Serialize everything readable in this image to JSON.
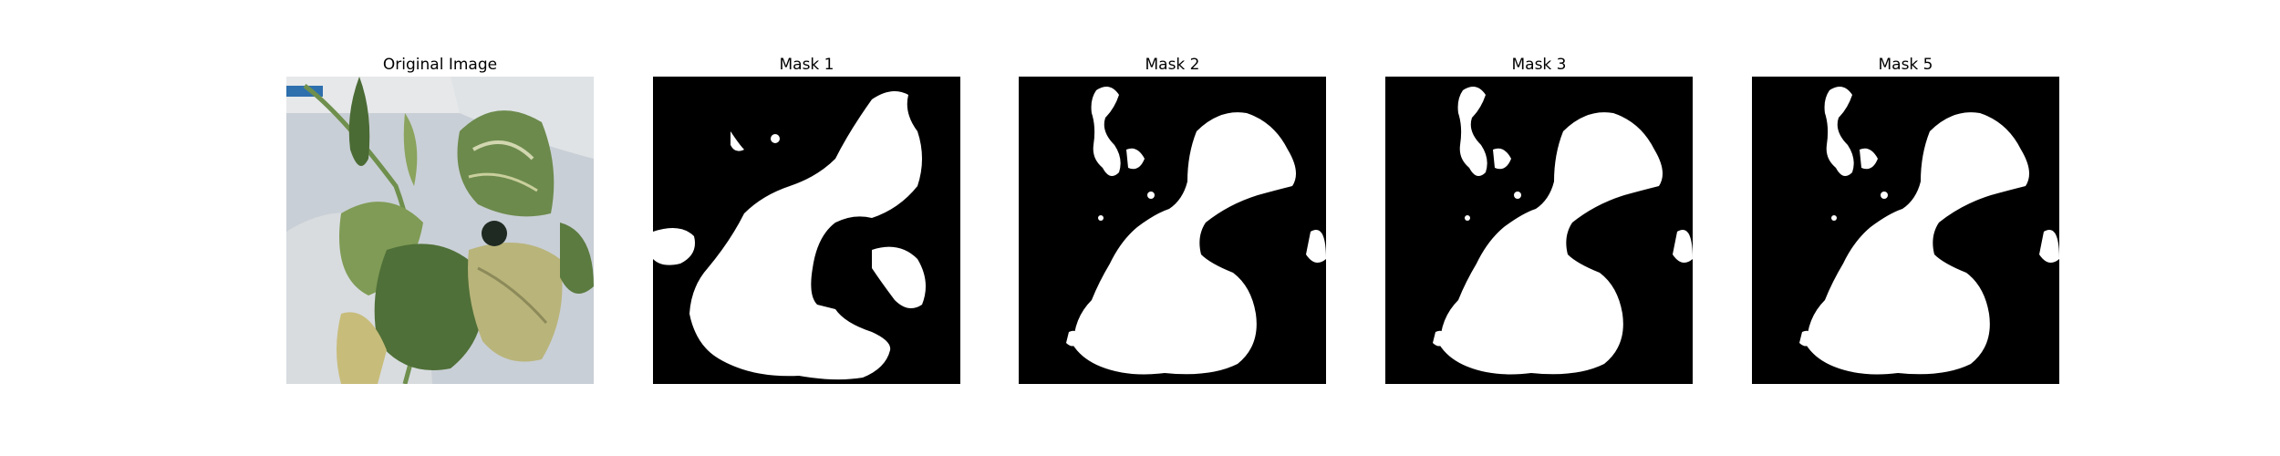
{
  "figure": {
    "panels": [
      {
        "id": "original",
        "title": "Original Image"
      },
      {
        "id": "mask1",
        "title": "Mask 1"
      },
      {
        "id": "mask2",
        "title": "Mask 2"
      },
      {
        "id": "mask3",
        "title": "Mask 3"
      },
      {
        "id": "mask5",
        "title": "Mask 5"
      }
    ]
  },
  "colors": {
    "mask_background": "#000000",
    "mask_foreground": "#ffffff",
    "photo_background": "#c9cfd6",
    "leaf_dark": "#3f5f33",
    "leaf_mid": "#6c8a4c",
    "leaf_light": "#b9c27a",
    "leaf_yellow": "#c8bc7a"
  }
}
